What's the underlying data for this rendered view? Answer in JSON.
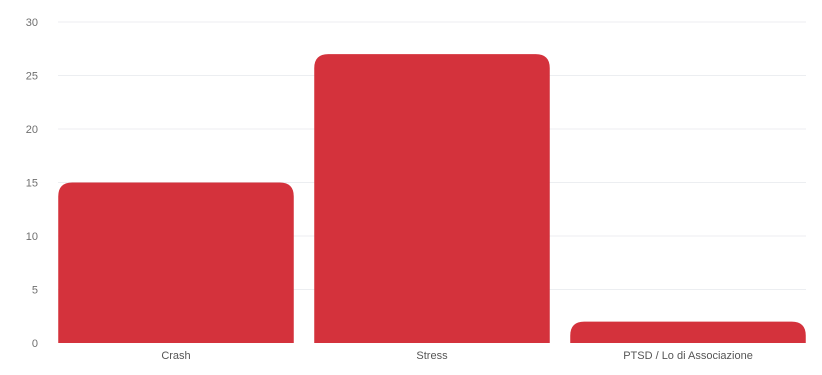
{
  "chart_data": {
    "type": "bar",
    "categories": [
      "Crash",
      "Stress",
      "PTSD / Lo di Associazione"
    ],
    "values": [
      15,
      27,
      2
    ],
    "ylim": [
      0,
      30
    ],
    "yticks": [
      0,
      5,
      10,
      15,
      20,
      25,
      30
    ],
    "grid": true,
    "legend": "none",
    "bar_color": "#d4323c"
  }
}
